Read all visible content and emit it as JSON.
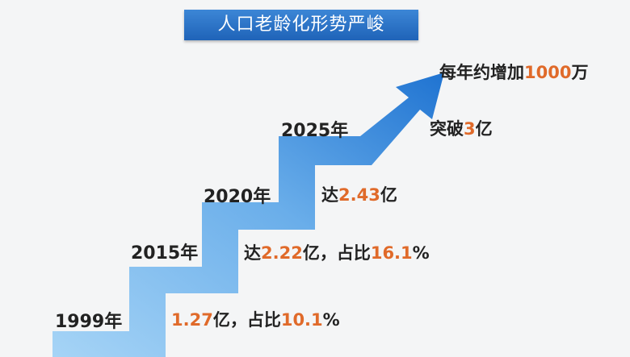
{
  "title": "人口老龄化形势严峻",
  "colors": {
    "banner": "#2a72c6",
    "arrow_light": "#9fd0f5",
    "arrow_dark": "#1f73d1",
    "highlight": "#e06a2a",
    "text": "#222222"
  },
  "steps": [
    {
      "year": "1999年",
      "stat": {
        "prefix": "",
        "value": "1.27",
        "mid": "亿，占比",
        "share": "10.1",
        "unit": "%"
      }
    },
    {
      "year": "2015年",
      "stat": {
        "prefix": "达",
        "value": "2.22",
        "mid": "亿，占比",
        "share": "16.1",
        "unit": "%"
      }
    },
    {
      "year": "2020年",
      "stat": {
        "prefix": "达",
        "value": "2.43",
        "mid": "亿",
        "share": "",
        "unit": ""
      }
    },
    {
      "year": "2025年",
      "stat": {
        "prefix": "突破",
        "value": "3",
        "mid": "亿",
        "share": "",
        "unit": ""
      }
    }
  ],
  "top_note": {
    "prefix": "每年约增加",
    "value": "1000",
    "suffix": "万"
  }
}
